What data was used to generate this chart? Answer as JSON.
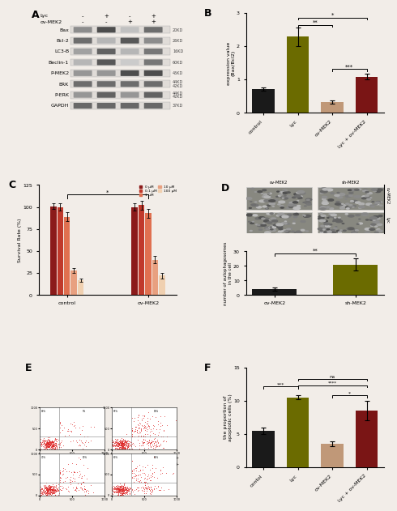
{
  "panel_B": {
    "categories": [
      "control",
      "Lyc",
      "ov-MEK2",
      "Lyc + ov-MEK2"
    ],
    "values": [
      0.72,
      2.28,
      0.32,
      1.08
    ],
    "errors": [
      0.05,
      0.28,
      0.04,
      0.08
    ],
    "colors": [
      "#1a1a1a",
      "#6b6b00",
      "#c09878",
      "#7a1515"
    ],
    "ylabel": "expression value\n(Bax/Bcl2)",
    "ylim": [
      0,
      3.0
    ],
    "yticks": [
      0,
      1,
      2,
      3
    ]
  },
  "panel_C": {
    "groups": [
      "control",
      "ov-MEK2"
    ],
    "doses": [
      "0 μM",
      "0.1 μM",
      "1 μM",
      "10 μM",
      "100 μM"
    ],
    "colors": [
      "#8b1a1a",
      "#c0392b",
      "#e07050",
      "#e8a080",
      "#f0d0b0"
    ],
    "values_control": [
      101,
      100,
      89,
      28,
      17
    ],
    "values_ovMEK2": [
      100,
      102,
      93,
      40,
      22
    ],
    "errors_control": [
      3,
      4,
      5,
      3,
      2
    ],
    "errors_ovMEK2": [
      4,
      5,
      5,
      4,
      3
    ],
    "ylabel": "Survival Rate (%)",
    "ylim": [
      0,
      125
    ],
    "yticks": [
      0,
      25,
      50,
      75,
      100,
      125
    ]
  },
  "panel_D": {
    "categories": [
      "ov-MEK2",
      "sh-MEK2"
    ],
    "values": [
      4,
      21
    ],
    "errors": [
      1.0,
      4
    ],
    "colors": [
      "#1a1a1a",
      "#6b6b00"
    ],
    "ylabel": "number of autophagosomes\nin the cell",
    "ylim": [
      0,
      30
    ],
    "yticks": [
      0,
      10,
      20,
      30
    ]
  },
  "panel_F": {
    "categories": [
      "contol",
      "Lyc",
      "ov-MEK2",
      "Lyc + ov-MEK2"
    ],
    "values": [
      5.5,
      10.5,
      3.5,
      8.5
    ],
    "errors": [
      0.5,
      0.3,
      0.4,
      1.5
    ],
    "colors": [
      "#1a1a1a",
      "#6b6b00",
      "#c09878",
      "#7a1515"
    ],
    "ylabel": "the proportion of\napoptotic cells (%)",
    "ylim": [
      0,
      15
    ],
    "yticks": [
      0,
      5,
      10,
      15
    ]
  },
  "panel_A": {
    "proteins": [
      "Bax",
      "Bcl-2",
      "LC3-B",
      "Beclin-1",
      "P-MEK2",
      "ERK",
      "P-ERK",
      "GAPDH"
    ],
    "kd_labels": [
      "20KD",
      "26KD",
      "16KD",
      "60KD",
      "45KD",
      "44KD\n42KD",
      "44KD\n42KD",
      "37KD"
    ],
    "lyc_labels": [
      "-",
      "+",
      "-",
      "+"
    ],
    "mek_labels": [
      "-",
      "-",
      "+",
      "+"
    ],
    "band_intensities": {
      "Bax": [
        0.55,
        0.85,
        0.3,
        0.7
      ],
      "Bcl-2": [
        0.7,
        0.35,
        0.8,
        0.55
      ],
      "LC3-B": [
        0.45,
        0.75,
        0.35,
        0.65
      ],
      "Beclin-1": [
        0.35,
        0.8,
        0.25,
        0.65
      ],
      "P-MEK2": [
        0.5,
        0.5,
        0.85,
        0.85
      ],
      "ERK": [
        0.7,
        0.7,
        0.7,
        0.7
      ],
      "P-ERK": [
        0.5,
        0.75,
        0.5,
        0.75
      ],
      "GAPDH": [
        0.72,
        0.72,
        0.72,
        0.72
      ]
    }
  },
  "bg_color": "#f2ede8"
}
